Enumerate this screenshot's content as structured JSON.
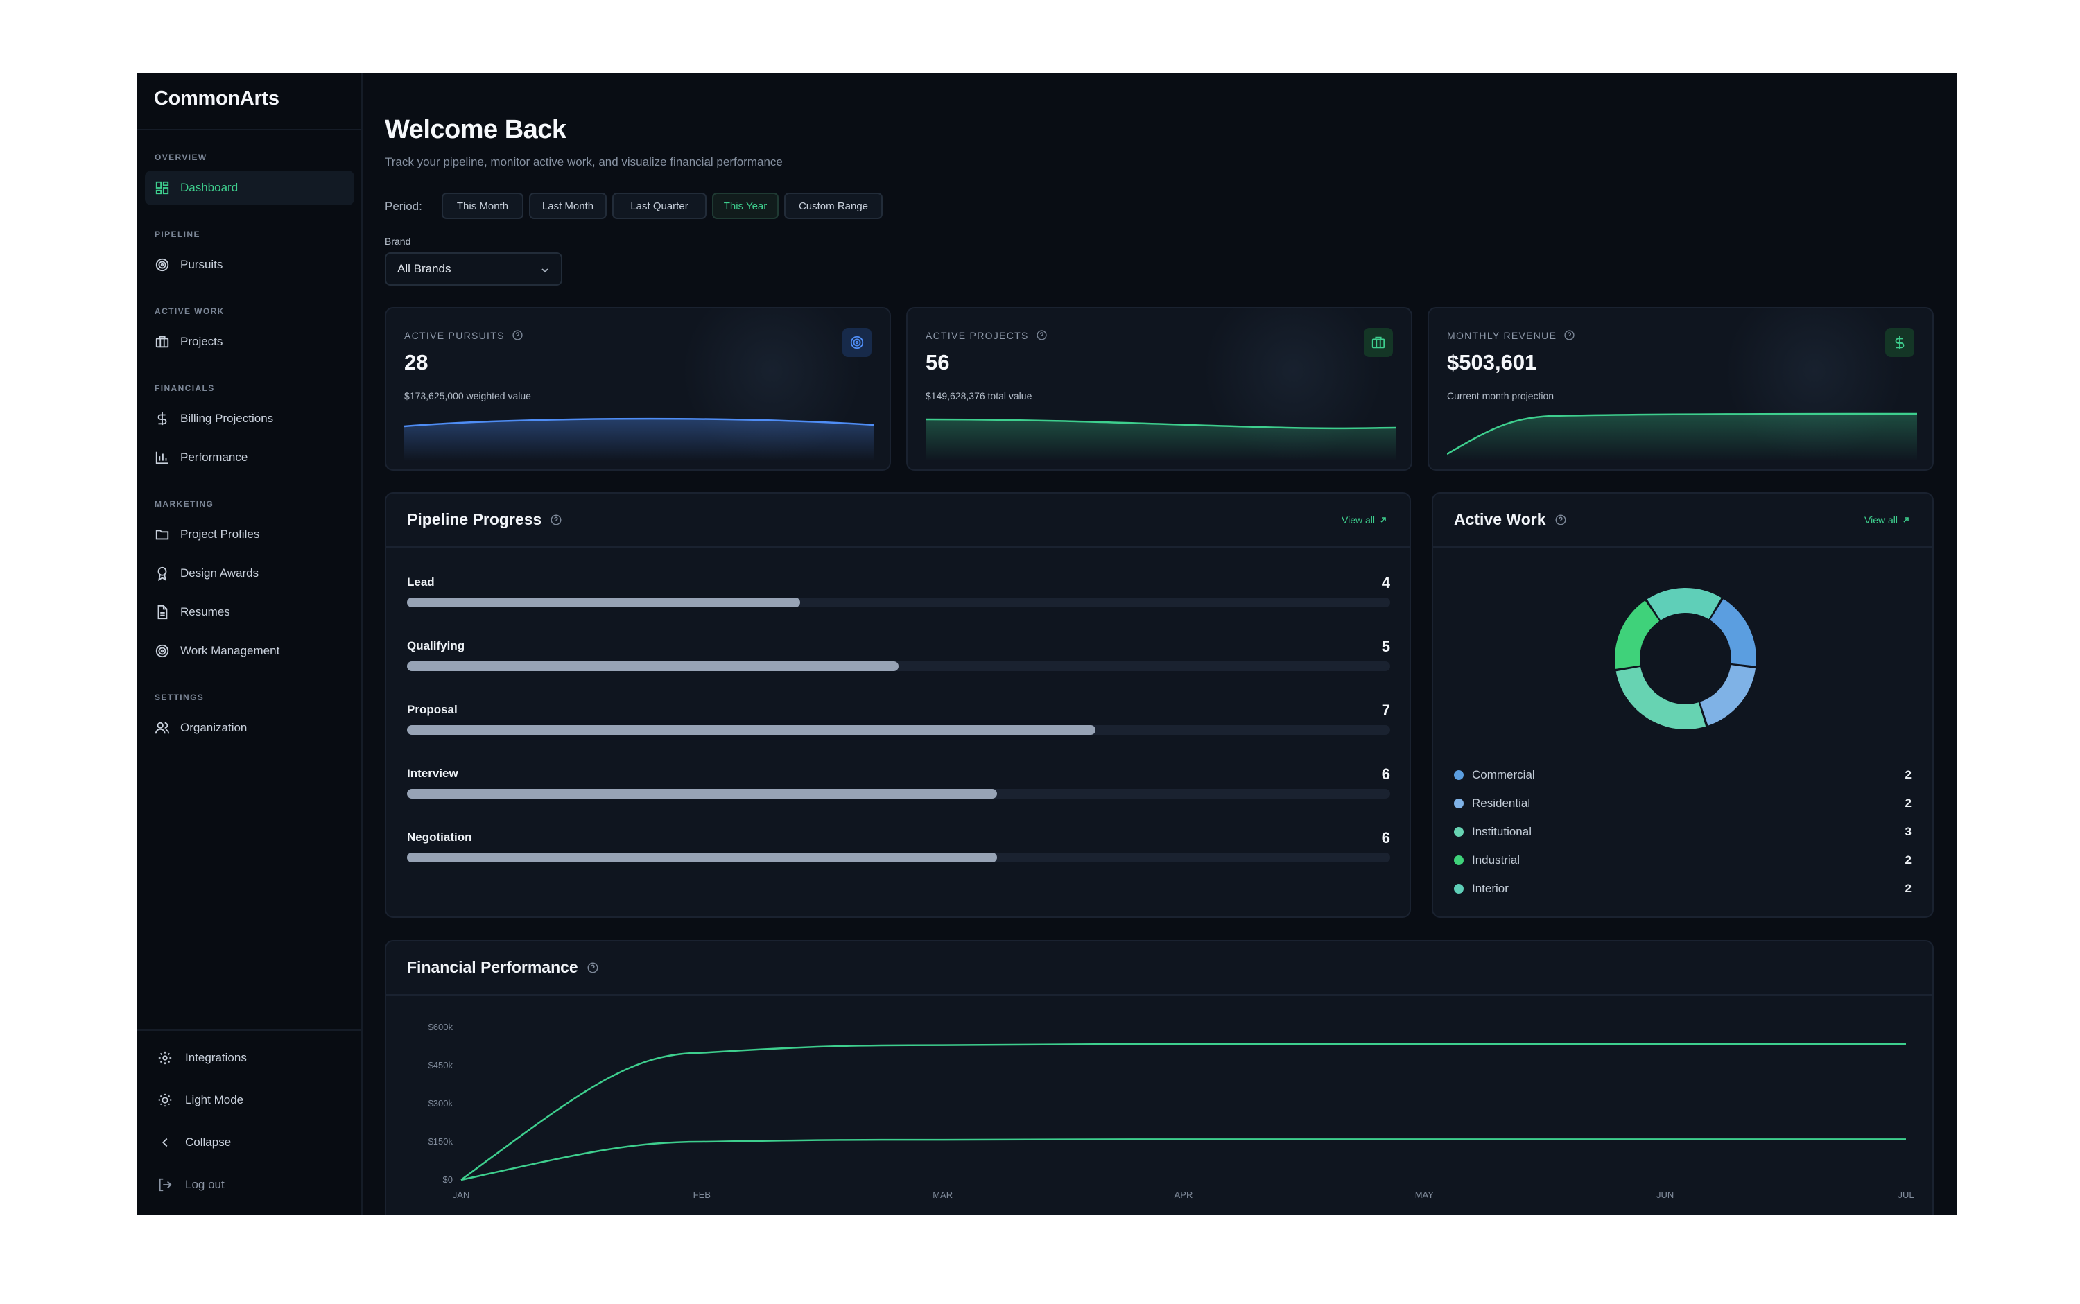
{
  "app": {
    "name": "CommonArts"
  },
  "sidebar": {
    "sections": [
      {
        "label": "OVERVIEW",
        "items": [
          {
            "label": "Dashboard",
            "icon": "grid-icon",
            "active": true
          }
        ]
      },
      {
        "label": "PIPELINE",
        "items": [
          {
            "label": "Pursuits",
            "icon": "target-icon"
          }
        ]
      },
      {
        "label": "ACTIVE WORK",
        "items": [
          {
            "label": "Projects",
            "icon": "briefcase-icon"
          }
        ]
      },
      {
        "label": "FINANCIALS",
        "items": [
          {
            "label": "Billing Projections",
            "icon": "dollar-icon"
          },
          {
            "label": "Performance",
            "icon": "bar-chart-icon"
          }
        ]
      },
      {
        "label": "MARKETING",
        "items": [
          {
            "label": "Project Profiles",
            "icon": "folder-icon"
          },
          {
            "label": "Design Awards",
            "icon": "award-icon"
          },
          {
            "label": "Resumes",
            "icon": "document-icon"
          },
          {
            "label": "Work Management",
            "icon": "target-icon"
          }
        ]
      },
      {
        "label": "SETTINGS",
        "items": [
          {
            "label": "Organization",
            "icon": "users-icon"
          }
        ]
      }
    ],
    "bottom": [
      {
        "label": "Integrations",
        "icon": "gear-icon"
      },
      {
        "label": "Light Mode",
        "icon": "sun-icon"
      },
      {
        "label": "Collapse",
        "icon": "chevron-left-icon"
      },
      {
        "label": "Log out",
        "icon": "logout-icon"
      }
    ]
  },
  "header": {
    "title": "Welcome Back",
    "subtitle": "Track your pipeline, monitor active work, and visualize financial performance",
    "period_label": "Period:",
    "periods": [
      "This Month",
      "Last Month",
      "Last Quarter",
      "This Year",
      "Custom Range"
    ],
    "active_period": "This Year",
    "brand_label": "Brand",
    "brand_value": "All Brands"
  },
  "kpis": [
    {
      "label": "ACTIVE PURSUITS",
      "value": "28",
      "sub": "$173,625,000 weighted value",
      "icon": "target-icon",
      "color": "#4f8df5"
    },
    {
      "label": "ACTIVE PROJECTS",
      "value": "56",
      "sub": "$149,628,376 total value",
      "icon": "briefcase-icon",
      "color": "#3ecf8e"
    },
    {
      "label": "MONTHLY REVENUE",
      "value": "$503,601",
      "sub": "Current month projection",
      "icon": "dollar-icon",
      "color": "#3ecf8e"
    }
  ],
  "pipeline": {
    "title": "Pipeline Progress",
    "view_all": "View all",
    "max": 10,
    "stages": [
      {
        "name": "Lead",
        "count": 4,
        "value": 4
      },
      {
        "name": "Qualifying",
        "count": 5,
        "value": 5
      },
      {
        "name": "Proposal",
        "count": 7,
        "value": 7
      },
      {
        "name": "Interview",
        "count": 6,
        "value": 6
      },
      {
        "name": "Negotiation",
        "count": 6,
        "value": 6
      }
    ]
  },
  "active_work": {
    "title": "Active Work",
    "view_all": "View all",
    "items": [
      {
        "name": "Commercial",
        "value": 2,
        "color": "#5b9ee0"
      },
      {
        "name": "Residential",
        "value": 2,
        "color": "#7fb2e6"
      },
      {
        "name": "Institutional",
        "value": 3,
        "color": "#67d3b2"
      },
      {
        "name": "Industrial",
        "value": 2,
        "color": "#3fd27a"
      },
      {
        "name": "Interior",
        "value": 2,
        "color": "#5fcfb8"
      }
    ]
  },
  "financial": {
    "title": "Financial Performance"
  },
  "chart_data": [
    {
      "type": "line",
      "title": "Financial Performance",
      "categories": [
        "JAN",
        "FEB",
        "MAR",
        "APR",
        "MAY",
        "JUN",
        "JUL"
      ],
      "y_ticks": [
        "$600k",
        "$450k",
        "$300k",
        "$150k",
        "$0"
      ],
      "ylim": [
        0,
        600000
      ],
      "series": [
        {
          "values": [
            0,
            500000,
            530000,
            535000,
            535000,
            535000,
            535000
          ],
          "color": "#3ecf8e"
        },
        {
          "values": [
            0,
            150000,
            158000,
            160000,
            160000,
            160000,
            160000
          ],
          "color": "#3ecf8e"
        }
      ]
    },
    {
      "type": "pie",
      "title": "",
      "categories": [
        "Commercial",
        "Residential",
        "Institutional",
        "Industrial",
        "Interior"
      ],
      "values": [
        2,
        2,
        3,
        2,
        2
      ]
    }
  ]
}
